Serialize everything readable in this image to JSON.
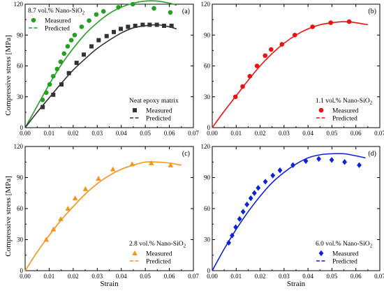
{
  "figure": {
    "ylabel_text": "Compressive stress [MPa]",
    "xlabel_text": "Strain",
    "colors": {
      "green": "#22a022",
      "black": "#333333",
      "red": "#ee1111",
      "orange": "#f7941d",
      "blue": "#0b22dd"
    }
  },
  "chart_data": [
    {
      "type": "scatter",
      "panel_tag": "(a)",
      "xlabel": "",
      "ylabel": "Compressive stress [MPa]",
      "xlim": [
        0.0,
        0.07
      ],
      "ylim": [
        0,
        120
      ],
      "xticks": [
        "0.00",
        "0.01",
        "0.02",
        "0.03",
        "0.04",
        "0.05",
        "0.06",
        "0.07"
      ],
      "yticks": [
        "0",
        "30",
        "60",
        "90",
        "120"
      ],
      "legend_groups": [
        {
          "title": "8.7 vol.% Nano-SiO₂",
          "measured_label": "Measured",
          "predicted_label": "Predicted",
          "position": "top-left"
        },
        {
          "title": "Neat epoxy matrix",
          "measured_label": "Measured",
          "predicted_label": "Predicted",
          "position": "bottom-right"
        }
      ],
      "series": [
        {
          "name": "8.7 vol.% Nano-SiO₂",
          "color": "#22a022",
          "marker": "circle",
          "measured": {
            "x": [
              0.0073,
              0.0088,
              0.0102,
              0.0117,
              0.0133,
              0.0148,
              0.0162,
              0.0177,
              0.0192,
              0.0206,
              0.0235,
              0.0266,
              0.0296,
              0.0326,
              0.0388,
              0.0448,
              0.0536,
              0.0604
            ],
            "y": [
              27,
              34,
              42,
              50,
              57,
              64,
              72,
              79,
              85,
              90,
              98,
              104,
              110,
              113,
              117,
              120,
              116,
              112
            ]
          },
          "predicted": {
            "x": [
              0.0,
              0.005,
              0.01,
              0.015,
              0.02,
              0.025,
              0.03,
              0.035,
              0.04,
              0.045,
              0.05,
              0.055,
              0.06,
              0.063
            ],
            "y": [
              0,
              21,
              42,
              61,
              77,
              91,
              102,
              111,
              117,
              121,
              123,
              123,
              121,
              119
            ]
          }
        },
        {
          "name": "Neat epoxy matrix",
          "color": "#333333",
          "marker": "square",
          "measured": {
            "x": [
              0.0073,
              0.0117,
              0.0151,
              0.0182,
              0.0214,
              0.0244,
              0.0276,
              0.0306,
              0.0339,
              0.0369,
              0.0398,
              0.0428,
              0.0458,
              0.0489,
              0.0518,
              0.0548,
              0.0578,
              0.0609
            ],
            "y": [
              20,
              32,
              42,
              53,
              63,
              71,
              79,
              85,
              89,
              93,
              96,
              98,
              99,
              100,
              100,
              100,
              99,
              99
            ]
          },
          "predicted": {
            "x": [
              0.0,
              0.005,
              0.01,
              0.015,
              0.02,
              0.025,
              0.03,
              0.035,
              0.04,
              0.045,
              0.05,
              0.055,
              0.06,
              0.063
            ],
            "y": [
              0,
              15,
              29,
              43,
              56,
              67,
              77,
              85,
              92,
              97,
              99,
              100,
              98,
              96
            ]
          }
        }
      ]
    },
    {
      "type": "scatter",
      "panel_tag": "(b)",
      "xlabel": "",
      "ylabel": "",
      "xlim": [
        0.0,
        0.07
      ],
      "ylim": [
        0,
        120
      ],
      "xticks": [
        "0.00",
        "0.01",
        "0.02",
        "0.03",
        "0.04",
        "0.05",
        "0.06",
        "0.07"
      ],
      "yticks": [
        "0",
        "30",
        "60",
        "90",
        "120"
      ],
      "legend_groups": [
        {
          "title": "1.1 vol.% Nano-SiO₂",
          "measured_label": "Measured",
          "predicted_label": "Predicted",
          "position": "bottom-right"
        }
      ],
      "series": [
        {
          "name": "1.1 vol.% Nano-SiO₂",
          "color": "#ee1111",
          "marker": "circle",
          "measured": {
            "x": [
              0.0097,
              0.0127,
              0.0157,
              0.0187,
              0.0221,
              0.0246,
              0.0291,
              0.0345,
              0.0419,
              0.0495,
              0.0572
            ],
            "y": [
              30,
              40,
              50,
              60,
              70,
              76,
              81,
              90,
              98,
              102,
              103
            ]
          },
          "predicted": {
            "x": [
              0.0,
              0.005,
              0.01,
              0.015,
              0.02,
              0.025,
              0.03,
              0.035,
              0.04,
              0.045,
              0.05,
              0.055,
              0.06,
              0.065
            ],
            "y": [
              0,
              16,
              31,
              46,
              60,
              72,
              82,
              90,
              96,
              100,
              102,
              103,
              102,
              100
            ]
          }
        }
      ]
    },
    {
      "type": "scatter",
      "panel_tag": "(c)",
      "xlabel": "Strain",
      "ylabel": "Compressive stress [MPa]",
      "xlim": [
        0.0,
        0.07
      ],
      "ylim": [
        0,
        120
      ],
      "xticks": [
        "0.00",
        "0.01",
        "0.02",
        "0.03",
        "0.04",
        "0.05",
        "0.06",
        "0.07"
      ],
      "yticks": [
        "0",
        "30",
        "60",
        "90",
        "120"
      ],
      "legend_groups": [
        {
          "title": "2.8 vol.% Nano-SiO₂",
          "measured_label": "Measured",
          "predicted_label": "Predicted",
          "position": "bottom-right"
        }
      ],
      "series": [
        {
          "name": "2.8 vol.% Nano-SiO₂",
          "color": "#f7941d",
          "marker": "triangle",
          "measured": {
            "x": [
              0.0088,
              0.0118,
              0.0148,
              0.0178,
              0.0208,
              0.0251,
              0.0305,
              0.0365,
              0.0445,
              0.0525,
              0.0605
            ],
            "y": [
              30,
              40,
              50,
              60,
              70,
              79,
              89,
              98,
              103,
              104,
              102
            ]
          },
          "predicted": {
            "x": [
              0.0,
              0.005,
              0.01,
              0.015,
              0.02,
              0.025,
              0.03,
              0.035,
              0.04,
              0.045,
              0.05,
              0.055,
              0.06,
              0.065
            ],
            "y": [
              0,
              18,
              34,
              49,
              62,
              74,
              84,
              92,
              98,
              102,
              105,
              105,
              104,
              102
            ]
          }
        }
      ]
    },
    {
      "type": "scatter",
      "panel_tag": "(d)",
      "xlabel": "Strain",
      "ylabel": "",
      "xlim": [
        0.0,
        0.07
      ],
      "ylim": [
        0,
        120
      ],
      "xticks": [
        "0.00",
        "0.01",
        "0.02",
        "0.03",
        "0.04",
        "0.05",
        "0.06",
        "0.07"
      ],
      "yticks": [
        "0",
        "30",
        "60",
        "90",
        "120"
      ],
      "legend_groups": [
        {
          "title": "6.0 vol.% Nano-SiO₂",
          "measured_label": "Measured",
          "predicted_label": "Predicted",
          "position": "bottom-right"
        }
      ],
      "series": [
        {
          "name": "6.0 vol.% Nano-SiO₂",
          "color": "#0b22dd",
          "marker": "diamond",
          "measured": {
            "x": [
              0.0069,
              0.0083,
              0.0098,
              0.0114,
              0.0129,
              0.0145,
              0.0161,
              0.0176,
              0.0192,
              0.0222,
              0.0253,
              0.0283,
              0.0337,
              0.0391,
              0.0445,
              0.0499,
              0.0553,
              0.0614
            ],
            "y": [
              27,
              34,
              42,
              50,
              57,
              64,
              70,
              75,
              80,
              86,
              92,
              97,
              102,
              106,
              108,
              107,
              105,
              102
            ]
          },
          "predicted": {
            "x": [
              0.0,
              0.005,
              0.01,
              0.015,
              0.02,
              0.025,
              0.03,
              0.035,
              0.04,
              0.045,
              0.05,
              0.055,
              0.06,
              0.064
            ],
            "y": [
              0,
              21,
              40,
              57,
              72,
              85,
              95,
              103,
              109,
              112,
              113,
              113,
              111,
              109
            ]
          }
        }
      ]
    }
  ]
}
